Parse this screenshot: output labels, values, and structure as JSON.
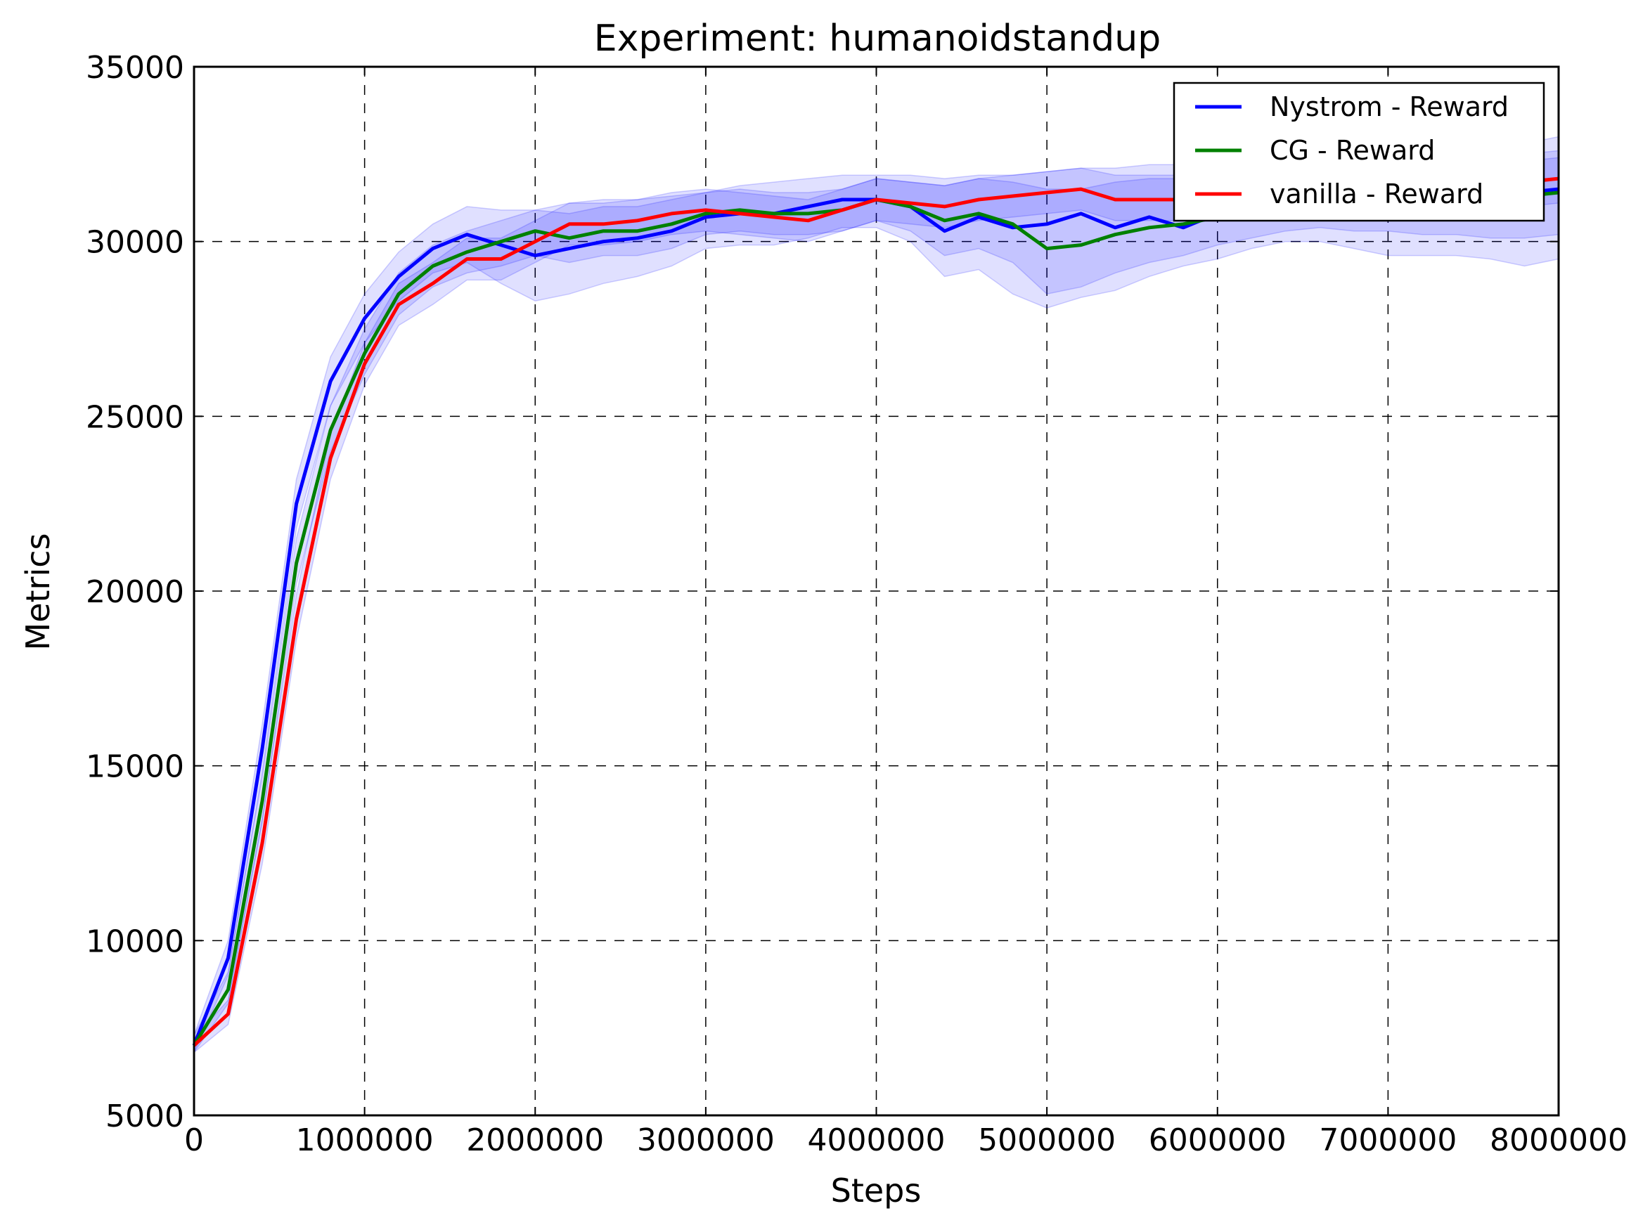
{
  "chart_data": {
    "type": "line",
    "title": "Experiment: humanoidstandup",
    "xlabel": "Steps",
    "ylabel": "Metrics",
    "xlim": [
      0,
      8000000
    ],
    "ylim": [
      5000,
      35000
    ],
    "x_ticks": [
      "0",
      "1000000",
      "2000000",
      "3000000",
      "4000000",
      "5000000",
      "6000000",
      "7000000",
      "8000000"
    ],
    "y_ticks": [
      "5000",
      "10000",
      "15000",
      "20000",
      "25000",
      "30000",
      "35000"
    ],
    "grid": true,
    "legend_position": "top-right",
    "x": [
      0,
      200000,
      400000,
      600000,
      800000,
      1000000,
      1200000,
      1400000,
      1600000,
      1800000,
      2000000,
      2200000,
      2400000,
      2600000,
      2800000,
      3000000,
      3200000,
      3400000,
      3600000,
      3800000,
      4000000,
      4200000,
      4400000,
      4600000,
      4800000,
      5000000,
      5200000,
      5400000,
      5600000,
      5800000,
      6000000,
      6200000,
      6400000,
      6600000,
      6800000,
      7000000,
      7200000,
      7400000,
      7600000,
      7800000,
      8000000
    ],
    "series": [
      {
        "name": "Nystrom - Reward",
        "color": "#0000ff",
        "values": [
          7000,
          9500,
          15500,
          22500,
          26000,
          27800,
          29000,
          29800,
          30200,
          29900,
          29600,
          29800,
          30000,
          30100,
          30300,
          30700,
          30800,
          30800,
          31000,
          31200,
          31200,
          31000,
          30300,
          30700,
          30400,
          30500,
          30800,
          30400,
          30700,
          30400,
          30800,
          30900,
          31000,
          31200,
          31100,
          31200,
          31100,
          31300,
          31300,
          31400,
          31500
        ],
        "band": [
          [
            6800,
            7300
          ],
          [
            9000,
            10000
          ],
          [
            14800,
            16200
          ],
          [
            21800,
            23200
          ],
          [
            25300,
            26700
          ],
          [
            27100,
            28500
          ],
          [
            28300,
            29700
          ],
          [
            29100,
            30500
          ],
          [
            29400,
            31000
          ],
          [
            28800,
            30900
          ],
          [
            28300,
            30900
          ],
          [
            28500,
            31100
          ],
          [
            28800,
            31200
          ],
          [
            29000,
            31200
          ],
          [
            29300,
            31300
          ],
          [
            29800,
            31400
          ],
          [
            29900,
            31600
          ],
          [
            29900,
            31700
          ],
          [
            30100,
            31800
          ],
          [
            30400,
            31900
          ],
          [
            30400,
            31900
          ],
          [
            30000,
            31900
          ],
          [
            29000,
            31800
          ],
          [
            29200,
            31900
          ],
          [
            28500,
            31900
          ],
          [
            28100,
            32000
          ],
          [
            28400,
            32100
          ],
          [
            28600,
            32100
          ],
          [
            29000,
            32200
          ],
          [
            29300,
            32200
          ],
          [
            29500,
            32200
          ],
          [
            29800,
            32300
          ],
          [
            30000,
            32400
          ],
          [
            30000,
            32500
          ],
          [
            29800,
            32500
          ],
          [
            29600,
            32600
          ],
          [
            29600,
            32600
          ],
          [
            29600,
            32700
          ],
          [
            29500,
            32800
          ],
          [
            29300,
            32800
          ],
          [
            29500,
            33000
          ]
        ]
      },
      {
        "name": "CG - Reward",
        "color": "#008000",
        "values": [
          7000,
          8600,
          14000,
          20800,
          24600,
          26800,
          28500,
          29300,
          29700,
          30000,
          30300,
          30100,
          30300,
          30300,
          30500,
          30800,
          30900,
          30800,
          30800,
          30900,
          31200,
          31000,
          30600,
          30800,
          30500,
          29800,
          29900,
          30200,
          30400,
          30500,
          30700,
          30800,
          31000,
          31100,
          31100,
          31200,
          31200,
          31200,
          31300,
          31300,
          31400
        ],
        "band": [
          [
            6800,
            7300
          ],
          [
            8200,
            9100
          ],
          [
            13400,
            14700
          ],
          [
            20200,
            21500
          ],
          [
            24000,
            25300
          ],
          [
            26200,
            27500
          ],
          [
            27900,
            29100
          ],
          [
            28700,
            29900
          ],
          [
            29100,
            30300
          ],
          [
            29300,
            30600
          ],
          [
            29600,
            30900
          ],
          [
            29400,
            30800
          ],
          [
            29600,
            31000
          ],
          [
            29600,
            31000
          ],
          [
            29800,
            31200
          ],
          [
            30200,
            31400
          ],
          [
            30300,
            31500
          ],
          [
            30200,
            31400
          ],
          [
            30200,
            31400
          ],
          [
            30300,
            31500
          ],
          [
            30600,
            31800
          ],
          [
            30300,
            31700
          ],
          [
            29600,
            31600
          ],
          [
            29800,
            31800
          ],
          [
            29400,
            31700
          ],
          [
            28500,
            31500
          ],
          [
            28700,
            31500
          ],
          [
            29100,
            31700
          ],
          [
            29400,
            31800
          ],
          [
            29600,
            31800
          ],
          [
            29900,
            31800
          ],
          [
            30100,
            31800
          ],
          [
            30300,
            31900
          ],
          [
            30400,
            31900
          ],
          [
            30300,
            31900
          ],
          [
            30300,
            32000
          ],
          [
            30200,
            32100
          ],
          [
            30200,
            32100
          ],
          [
            30100,
            32200
          ],
          [
            30100,
            32300
          ],
          [
            30200,
            32400
          ]
        ]
      },
      {
        "name": "vanilla - Reward",
        "color": "#ff0000",
        "values": [
          7000,
          7900,
          12800,
          19200,
          23800,
          26500,
          28200,
          28800,
          29500,
          29500,
          30000,
          30500,
          30500,
          30600,
          30800,
          30900,
          30800,
          30700,
          30600,
          30900,
          31200,
          31100,
          31000,
          31200,
          31300,
          31400,
          31500,
          31200,
          31200,
          31200,
          31400,
          31500,
          31400,
          31500,
          31500,
          31500,
          31500,
          31600,
          31600,
          31700,
          31800
        ],
        "band": [
          [
            6800,
            7200
          ],
          [
            7600,
            8300
          ],
          [
            12200,
            13500
          ],
          [
            18600,
            19900
          ],
          [
            23200,
            24500
          ],
          [
            25900,
            27100
          ],
          [
            27600,
            28800
          ],
          [
            28200,
            29400
          ],
          [
            28900,
            30100
          ],
          [
            28900,
            30100
          ],
          [
            29400,
            30600
          ],
          [
            29900,
            31100
          ],
          [
            29900,
            31100
          ],
          [
            30000,
            31200
          ],
          [
            30200,
            31400
          ],
          [
            30300,
            31500
          ],
          [
            30200,
            31400
          ],
          [
            30100,
            31300
          ],
          [
            30000,
            31200
          ],
          [
            30300,
            31500
          ],
          [
            30600,
            31800
          ],
          [
            30500,
            31700
          ],
          [
            30400,
            31600
          ],
          [
            30600,
            31800
          ],
          [
            30700,
            31900
          ],
          [
            30800,
            32000
          ],
          [
            30900,
            32100
          ],
          [
            30600,
            31900
          ],
          [
            30600,
            31900
          ],
          [
            30600,
            31900
          ],
          [
            30800,
            32000
          ],
          [
            30900,
            32100
          ],
          [
            30800,
            32100
          ],
          [
            30900,
            32200
          ],
          [
            30900,
            32200
          ],
          [
            30800,
            32300
          ],
          [
            30800,
            32300
          ],
          [
            30900,
            32400
          ],
          [
            30900,
            32400
          ],
          [
            31000,
            32500
          ],
          [
            31100,
            32600
          ]
        ]
      }
    ]
  }
}
